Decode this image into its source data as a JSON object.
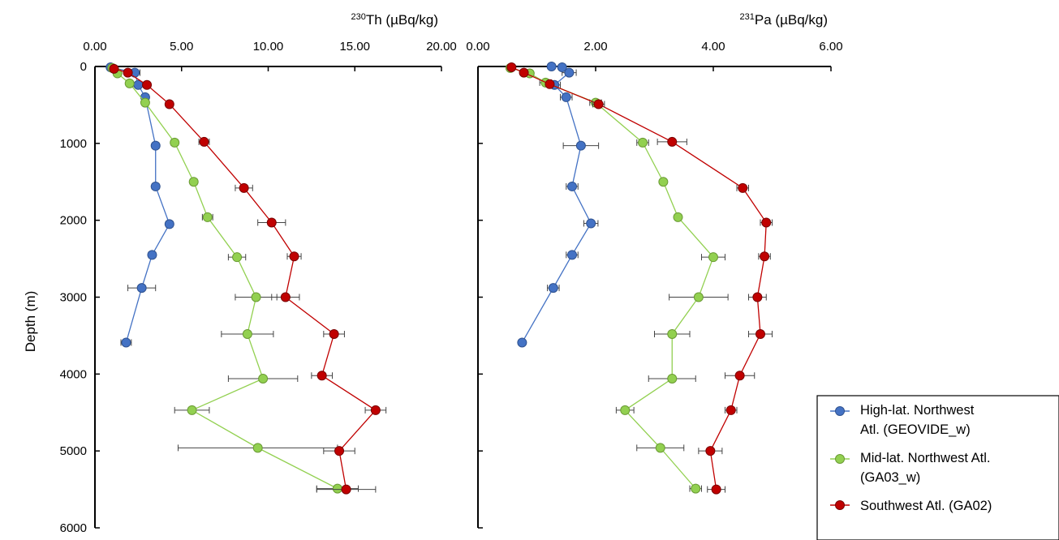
{
  "chart_data": [
    {
      "type": "scatter",
      "title": "",
      "xlabel_sup": "230",
      "xlabel": "Th (µBq/kg)",
      "ylabel": "Depth (m)",
      "xlim": [
        0,
        20
      ],
      "ylim": [
        0,
        6000
      ],
      "y_inverted": true,
      "x_axis_position": "top",
      "x_ticks": [
        "0.00",
        "5.00",
        "10.00",
        "15.00",
        "20.00"
      ],
      "y_ticks": [
        "0",
        "1000",
        "2000",
        "3000",
        "4000",
        "5000",
        "6000"
      ],
      "series": [
        {
          "name": "High-lat. Northwest Atl. (GEOVIDE_w)",
          "color": "#4472c4",
          "points": [
            {
              "x": 0.9,
              "y": 10,
              "err": 0
            },
            {
              "x": 2.3,
              "y": 80,
              "err": 0.3
            },
            {
              "x": 2.5,
              "y": 240,
              "err": 0.3
            },
            {
              "x": 2.9,
              "y": 400,
              "err": 0.2
            },
            {
              "x": 3.5,
              "y": 1030,
              "err": 0.2
            },
            {
              "x": 3.5,
              "y": 1560,
              "err": 0.2
            },
            {
              "x": 4.3,
              "y": 2050,
              "err": 0.2
            },
            {
              "x": 3.3,
              "y": 2450,
              "err": 0.2
            },
            {
              "x": 2.7,
              "y": 2880,
              "err": 0.8
            },
            {
              "x": 1.8,
              "y": 3590,
              "err": 0.3
            }
          ]
        },
        {
          "name": "Mid-lat. Northwest Atl. (GA03_w)",
          "color": "#92d050",
          "points": [
            {
              "x": 1.0,
              "y": 20,
              "err": 0
            },
            {
              "x": 1.3,
              "y": 90,
              "err": 0
            },
            {
              "x": 2.0,
              "y": 220,
              "err": 0
            },
            {
              "x": 2.9,
              "y": 470,
              "err": 0.1
            },
            {
              "x": 4.6,
              "y": 990,
              "err": 0.2
            },
            {
              "x": 5.7,
              "y": 1500,
              "err": 0.2
            },
            {
              "x": 6.5,
              "y": 1960,
              "err": 0.3
            },
            {
              "x": 8.2,
              "y": 2480,
              "err": 0.5
            },
            {
              "x": 9.3,
              "y": 3000,
              "err": 1.2
            },
            {
              "x": 8.8,
              "y": 3480,
              "err": 1.5
            },
            {
              "x": 9.7,
              "y": 4060,
              "err": 2.0
            },
            {
              "x": 5.6,
              "y": 4470,
              "err": 1.0
            },
            {
              "x": 9.4,
              "y": 4960,
              "err": 4.6
            },
            {
              "x": 14.0,
              "y": 5490,
              "err": 1.2
            }
          ]
        },
        {
          "name": "Southwest Atl. (GA02)",
          "color": "#c00000",
          "points": [
            {
              "x": 1.1,
              "y": 30,
              "err": 0
            },
            {
              "x": 1.9,
              "y": 80,
              "err": 0
            },
            {
              "x": 3.0,
              "y": 240,
              "err": 0
            },
            {
              "x": 4.3,
              "y": 490,
              "err": 0.2
            },
            {
              "x": 6.3,
              "y": 980,
              "err": 0.3
            },
            {
              "x": 8.6,
              "y": 1580,
              "err": 0.5
            },
            {
              "x": 10.2,
              "y": 2030,
              "err": 0.8
            },
            {
              "x": 11.5,
              "y": 2470,
              "err": 0.4
            },
            {
              "x": 11.0,
              "y": 3000,
              "err": 0.8
            },
            {
              "x": 13.8,
              "y": 3480,
              "err": 0.6
            },
            {
              "x": 13.1,
              "y": 4020,
              "err": 0.6
            },
            {
              "x": 16.2,
              "y": 4470,
              "err": 0.6
            },
            {
              "x": 14.1,
              "y": 5000,
              "err": 0.9
            },
            {
              "x": 14.5,
              "y": 5500,
              "err": 1.7
            }
          ]
        }
      ]
    },
    {
      "type": "scatter",
      "title": "",
      "xlabel_sup": "231",
      "xlabel": "Pa (µBq/kg)",
      "ylabel": "",
      "xlim": [
        0,
        6
      ],
      "ylim": [
        0,
        6000
      ],
      "y_inverted": true,
      "x_axis_position": "top",
      "x_ticks": [
        "0.00",
        "2.00",
        "4.00",
        "6.00"
      ],
      "y_ticks": [],
      "series": [
        {
          "name": "High-lat. Northwest Atl. (GEOVIDE_w)",
          "color": "#4472c4",
          "points": [
            {
              "x": 1.25,
              "y": 0,
              "err": 0.05
            },
            {
              "x": 1.43,
              "y": 10,
              "err": 0.05
            },
            {
              "x": 1.55,
              "y": 80,
              "err": 0.12
            },
            {
              "x": 1.3,
              "y": 240,
              "err": 0.1
            },
            {
              "x": 1.5,
              "y": 400,
              "err": 0.1
            },
            {
              "x": 1.75,
              "y": 1030,
              "err": 0.3
            },
            {
              "x": 1.6,
              "y": 1560,
              "err": 0.1
            },
            {
              "x": 1.92,
              "y": 2040,
              "err": 0.12
            },
            {
              "x": 1.6,
              "y": 2450,
              "err": 0.1
            },
            {
              "x": 1.28,
              "y": 2880,
              "err": 0.1
            },
            {
              "x": 0.75,
              "y": 3590,
              "err": 0.05
            }
          ]
        },
        {
          "name": "Mid-lat. Northwest Atl. (GA03_w)",
          "color": "#92d050",
          "points": [
            {
              "x": 0.55,
              "y": 20,
              "err": 0
            },
            {
              "x": 0.88,
              "y": 90,
              "err": 0
            },
            {
              "x": 1.15,
              "y": 210,
              "err": 0.1
            },
            {
              "x": 2.0,
              "y": 470,
              "err": 0.1
            },
            {
              "x": 2.8,
              "y": 990,
              "err": 0.1
            },
            {
              "x": 3.15,
              "y": 1500,
              "err": 0.05
            },
            {
              "x": 3.4,
              "y": 1960,
              "err": 0.05
            },
            {
              "x": 4.0,
              "y": 2480,
              "err": 0.2
            },
            {
              "x": 3.75,
              "y": 3000,
              "err": 0.5
            },
            {
              "x": 3.3,
              "y": 3480,
              "err": 0.3
            },
            {
              "x": 3.3,
              "y": 4060,
              "err": 0.4
            },
            {
              "x": 2.5,
              "y": 4470,
              "err": 0.15
            },
            {
              "x": 3.1,
              "y": 4960,
              "err": 0.4
            },
            {
              "x": 3.7,
              "y": 5490,
              "err": 0.1
            }
          ]
        },
        {
          "name": "Southwest Atl. (GA02)",
          "color": "#c00000",
          "points": [
            {
              "x": 0.57,
              "y": 10,
              "err": 0
            },
            {
              "x": 0.78,
              "y": 80,
              "err": 0
            },
            {
              "x": 1.22,
              "y": 230,
              "err": 0
            },
            {
              "x": 2.05,
              "y": 490,
              "err": 0.1
            },
            {
              "x": 3.3,
              "y": 980,
              "err": 0.25
            },
            {
              "x": 4.5,
              "y": 1580,
              "err": 0.1
            },
            {
              "x": 4.9,
              "y": 2030,
              "err": 0.1
            },
            {
              "x": 4.87,
              "y": 2470,
              "err": 0.1
            },
            {
              "x": 4.75,
              "y": 3000,
              "err": 0.15
            },
            {
              "x": 4.8,
              "y": 3480,
              "err": 0.2
            },
            {
              "x": 4.45,
              "y": 4020,
              "err": 0.25
            },
            {
              "x": 4.3,
              "y": 4470,
              "err": 0.1
            },
            {
              "x": 3.95,
              "y": 5000,
              "err": 0.2
            },
            {
              "x": 4.05,
              "y": 5500,
              "err": 0.15
            }
          ]
        }
      ]
    }
  ],
  "legend": {
    "placement": "bottom-right",
    "entries": [
      {
        "lines": [
          "High-lat. Northwest",
          "Atl. (GEOVIDE_w)"
        ],
        "color": "#4472c4"
      },
      {
        "lines": [
          "Mid-lat. Northwest Atl.",
          "(GA03_w)"
        ],
        "color": "#92d050"
      },
      {
        "lines": [
          "Southwest Atl. (GA02)"
        ],
        "color": "#c00000"
      }
    ]
  }
}
